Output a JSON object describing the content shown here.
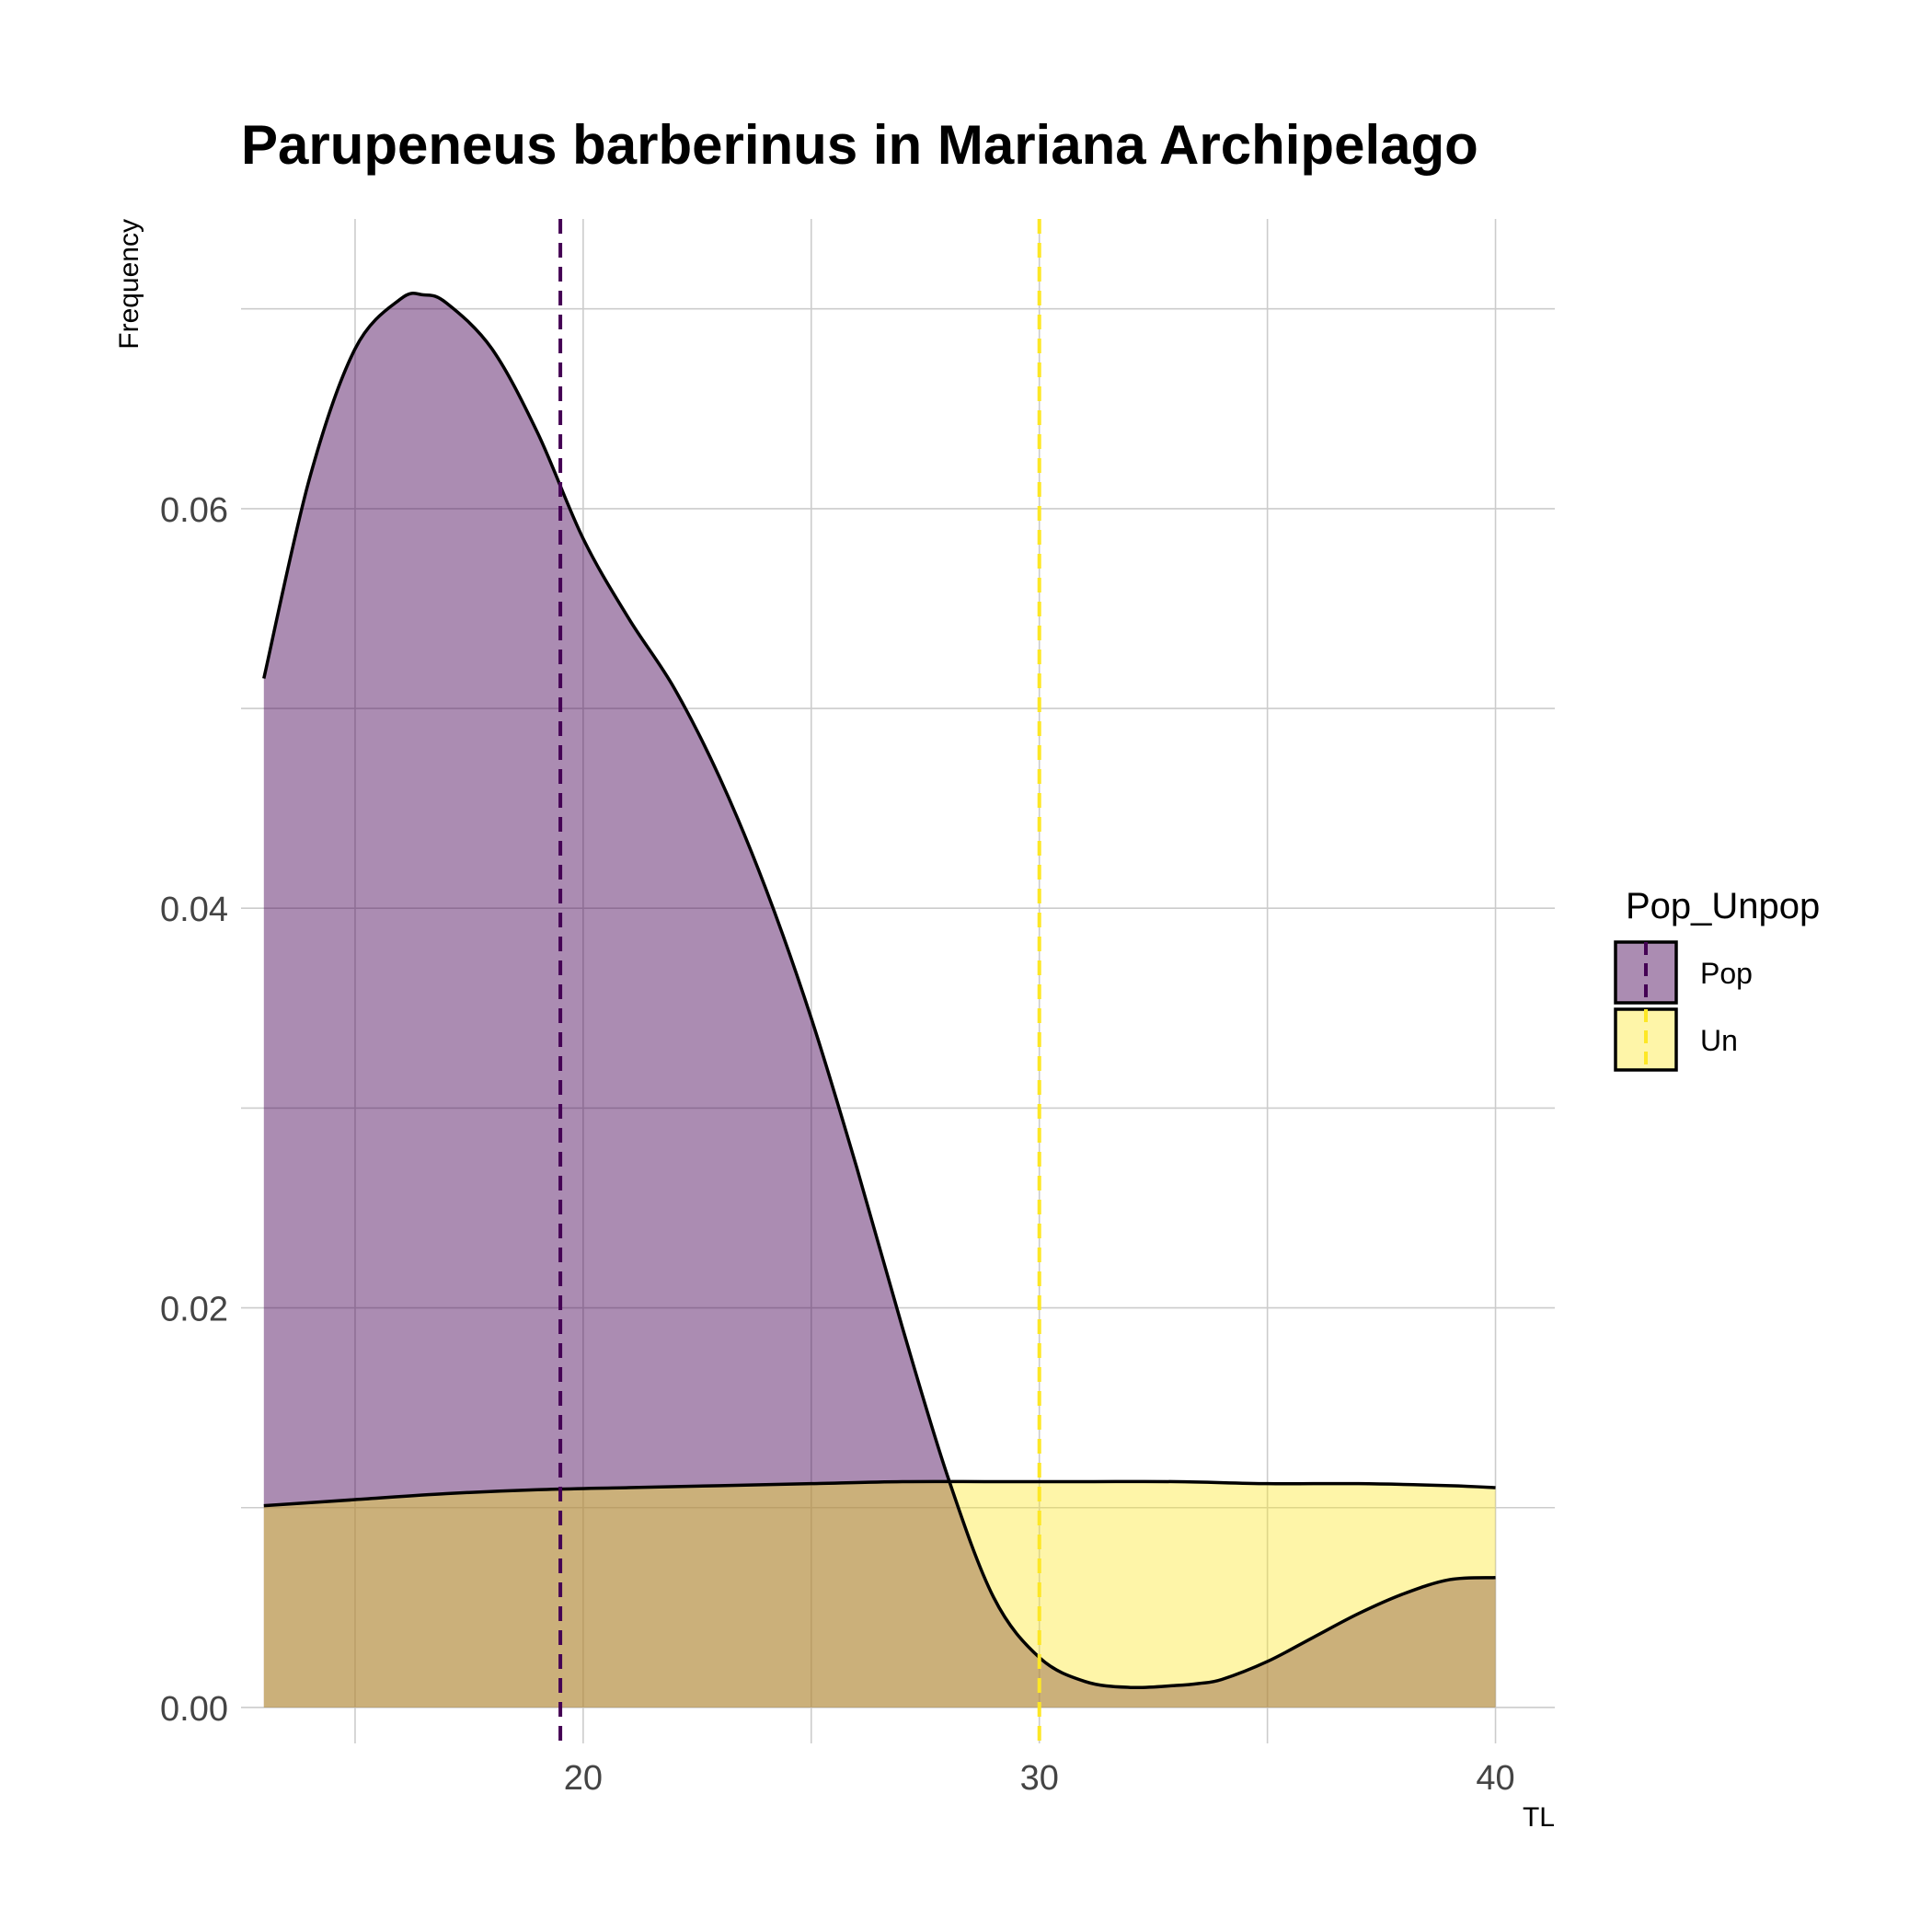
{
  "chart_data": {
    "type": "area",
    "title": "Parupeneus barberinus in Mariana Archipelago",
    "xlabel": "TL",
    "ylabel": "Frequency",
    "xlim": [
      12.5,
      41.3
    ],
    "ylim": [
      -0.0018,
      0.0745
    ],
    "x_ticks": [
      20,
      30,
      40
    ],
    "x_tick_labels": [
      "20",
      "30",
      "40"
    ],
    "y_ticks": [
      0.0,
      0.02,
      0.04,
      0.06
    ],
    "y_tick_labels": [
      "0.00",
      "0.02",
      "0.04",
      "0.06"
    ],
    "grid": true,
    "legend": {
      "title": "Pop_Unpop",
      "position": "right"
    },
    "series": [
      {
        "name": "Pop",
        "color": "#440154",
        "fill_opacity": 0.45,
        "mean_line": 19.5,
        "x": [
          13,
          14,
          15,
          16,
          16.5,
          17,
          18,
          19,
          20,
          21,
          22,
          23,
          24,
          25,
          26,
          27,
          28,
          29,
          30,
          31,
          32,
          33,
          33.5,
          34,
          35,
          36,
          37,
          38,
          39,
          40
        ],
        "y": [
          0.0515,
          0.0615,
          0.068,
          0.0705,
          0.0707,
          0.0703,
          0.068,
          0.0638,
          0.0585,
          0.0545,
          0.051,
          0.0465,
          0.041,
          0.0345,
          0.027,
          0.019,
          0.0115,
          0.0055,
          0.0025,
          0.0013,
          0.001,
          0.0011,
          0.0012,
          0.0014,
          0.0023,
          0.0035,
          0.0047,
          0.0057,
          0.0064,
          0.0065
        ]
      },
      {
        "name": "Un",
        "color": "#FDE725",
        "fill_opacity": 0.4,
        "mean_line": 30,
        "x": [
          13,
          15,
          17,
          19,
          21,
          23,
          25,
          27,
          29,
          31,
          33,
          35,
          37,
          39,
          40
        ],
        "y": [
          0.0101,
          0.0104,
          0.0107,
          0.0109,
          0.011,
          0.0111,
          0.0112,
          0.0113,
          0.0113,
          0.0113,
          0.0113,
          0.0112,
          0.0112,
          0.0111,
          0.011
        ]
      }
    ]
  }
}
